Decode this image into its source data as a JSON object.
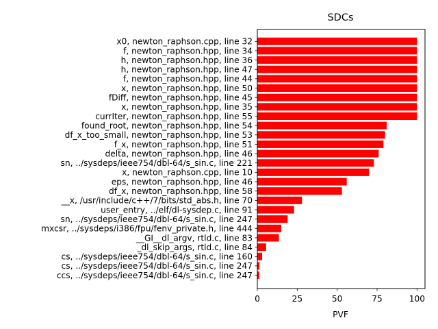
{
  "chart_data": {
    "type": "bar",
    "orientation": "horizontal",
    "title": "SDCs",
    "xlabel": "PVF",
    "ylabel": "",
    "xlim": [
      0,
      105
    ],
    "xticks": [
      0,
      25,
      50,
      75,
      100
    ],
    "grid": false,
    "bar_color": "#ff0000",
    "categories": [
      "x0, newton_raphson.cpp, line 32",
      "f, newton_raphson.hpp, line 34",
      "h, newton_raphson.hpp, line 36",
      "h, newton_raphson.hpp, line 47",
      "f, newton_raphson.hpp, line 44",
      "x, newton_raphson.hpp, line 50",
      "fDiff, newton_raphson.hpp, line 45",
      "x, newton_raphson.hpp, line 35",
      "currIter, newton_raphson.hpp, line 55",
      "found_root, newton_raphson.hpp, line 54",
      "df_x_too_small, newton_raphson.hpp, line 53",
      "f_x, newton_raphson.hpp, line 51",
      "delta, newton_raphson.hpp, line 46",
      "sn, ../sysdeps/ieee754/dbl-64/s_sin.c, line 221",
      "x, newton_raphson.cpp, line 10",
      "eps, newton_raphson.hpp, line 46",
      "df_x, newton_raphson.hpp, line 58",
      "__x, /usr/include/c++/7/bits/std_abs.h, line 70",
      "user_entry, ../elf/dl-sysdep.c, line 91",
      "sn, ../sysdeps/ieee754/dbl-64/s_sin.c, line 247",
      "mxcsr, ../sysdeps/i386/fpu/fenv_private.h, line 444",
      "__GI__dl_argv, rtld.c, line 83",
      "_dl_skip_args, rtld.c, line 84",
      "cs, ../sysdeps/ieee754/dbl-64/s_sin.c, line 160",
      "cs, ../sysdeps/ieee754/dbl-64/s_sin.c, line 247",
      "ccs, ../sysdeps/ieee754/dbl-64/s_sin.c, line 247"
    ],
    "values": [
      100,
      100,
      100,
      100,
      100,
      100,
      100,
      100,
      100,
      81,
      80,
      79,
      76,
      73,
      70,
      56,
      53,
      28,
      23,
      19,
      15,
      13.5,
      5.5,
      3,
      1.3,
      1.2
    ]
  }
}
